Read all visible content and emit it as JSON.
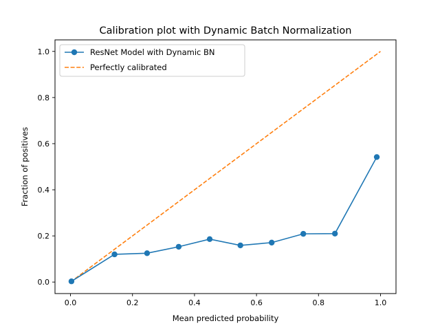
{
  "chart_data": {
    "type": "line",
    "title": "Calibration plot with Dynamic Batch Normalization",
    "xlabel": "Mean predicted probability",
    "ylabel": "Fraction of positives",
    "xlim": [
      -0.05,
      1.05
    ],
    "ylim": [
      -0.05,
      1.05
    ],
    "xticks": [
      0.0,
      0.2,
      0.4,
      0.6,
      0.8,
      1.0
    ],
    "xtick_labels": [
      "0.0",
      "0.2",
      "0.4",
      "0.6",
      "0.8",
      "1.0"
    ],
    "yticks": [
      0.0,
      0.2,
      0.4,
      0.6,
      0.8,
      1.0
    ],
    "ytick_labels": [
      "0.0",
      "0.2",
      "0.4",
      "0.6",
      "0.8",
      "1.0"
    ],
    "grid": false,
    "legend_position": "upper left",
    "series": [
      {
        "name": "ResNet Model with Dynamic BN",
        "color": "#1f77b4",
        "style": "solid",
        "marker": "circle",
        "x": [
          0.003,
          0.142,
          0.247,
          0.349,
          0.449,
          0.548,
          0.649,
          0.751,
          0.853,
          0.988
        ],
        "y": [
          0.003,
          0.12,
          0.125,
          0.153,
          0.186,
          0.159,
          0.171,
          0.209,
          0.21,
          0.542
        ]
      },
      {
        "name": "Perfectly calibrated",
        "color": "#ff7f0e",
        "style": "dashed",
        "marker": "none",
        "x": [
          0.0,
          1.0
        ],
        "y": [
          0.0,
          1.0
        ]
      }
    ]
  }
}
